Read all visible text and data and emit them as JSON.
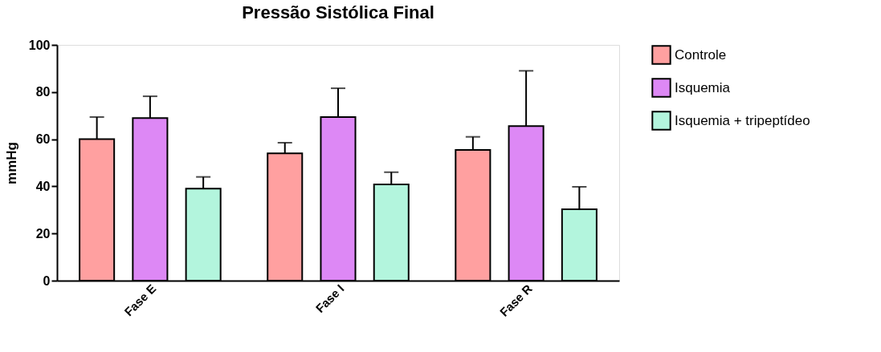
{
  "chart_data": {
    "type": "bar",
    "title": "Pressão Sistólica Final",
    "ylabel": "mmHg",
    "categories": [
      "Fase E",
      "Fase I",
      "Fase R"
    ],
    "series": [
      {
        "name": "Controle",
        "color": "#ffa0a0",
        "values": [
          60,
          54,
          55.4
        ],
        "errors": [
          [
            60,
            69.4
          ],
          [
            54,
            58.5
          ],
          [
            55.4,
            61
          ]
        ]
      },
      {
        "name": "Isquemia",
        "color": "#dd88f5",
        "values": [
          69,
          69.4,
          65.6
        ],
        "errors": [
          [
            69,
            78.2
          ],
          [
            69.4,
            81.6
          ],
          [
            65.6,
            89
          ]
        ]
      },
      {
        "name": "Isquemia + tripeptídeo",
        "color": "#b3f5dd",
        "values": [
          39,
          40.8,
          30.3
        ],
        "errors": [
          [
            39,
            44
          ],
          [
            40.8,
            46
          ],
          [
            30.3,
            39.8
          ]
        ]
      }
    ],
    "ylim": [
      0,
      100
    ],
    "yticks": [
      0,
      20,
      40,
      60,
      80,
      100
    ],
    "grid": false,
    "legend": "top right"
  }
}
